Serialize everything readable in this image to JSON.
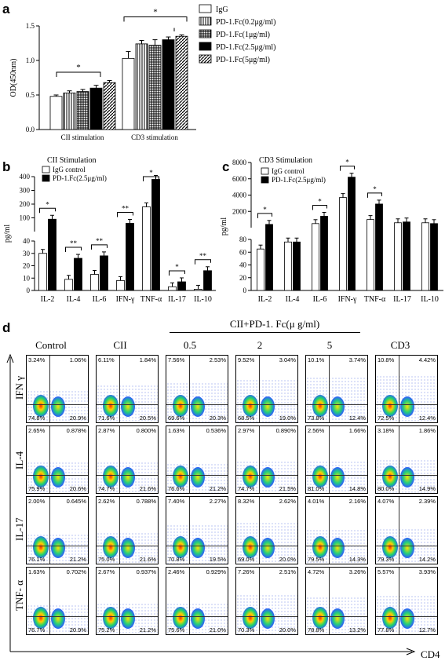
{
  "panels": {
    "a": "a",
    "b": "b",
    "c": "c",
    "d": "d"
  },
  "chart_data": [
    {
      "id": "a",
      "type": "bar",
      "ylabel": "OD(450nm)",
      "ylim": [
        0.0,
        1.5
      ],
      "yticks": [
        "0.0",
        "0.5",
        "1.0",
        "1.5"
      ],
      "categories": [
        "CII stimulation",
        "CD3 stimulation"
      ],
      "series": [
        {
          "name": "IgG",
          "values": [
            0.48,
            1.03
          ],
          "err": [
            0.02,
            0.1
          ],
          "fill": "white"
        },
        {
          "name": "PD-1.Fc(0.2μg/ml)",
          "values": [
            0.53,
            1.24
          ],
          "err": [
            0.03,
            0.05
          ],
          "fill": "vstripe"
        },
        {
          "name": "PD-1.Fc(1μg/ml)",
          "values": [
            0.55,
            1.22
          ],
          "err": [
            0.03,
            0.08
          ],
          "fill": "grid"
        },
        {
          "name": "PD-1.Fc(2.5μg/ml)",
          "values": [
            0.6,
            1.3
          ],
          "err": [
            0.04,
            0.04
          ],
          "fill": "black"
        },
        {
          "name": "PD-1.Fc(5μg/ml)",
          "values": [
            0.68,
            1.35
          ],
          "err": [
            0.03,
            0.02
          ],
          "fill": "diag"
        }
      ],
      "annotations": [
        "*",
        "*"
      ]
    },
    {
      "id": "b",
      "type": "bar",
      "title": "CII Stimulation",
      "ylabel": "pg/ml",
      "yticks_lower": [
        "0",
        "10",
        "20",
        "30",
        "40"
      ],
      "yticks_upper": [
        "100",
        "200",
        "300",
        "400"
      ],
      "categories": [
        "IL-2",
        "IL-4",
        "IL-6",
        "IFN-γ",
        "TNF-α",
        "IL-17",
        "IL-10"
      ],
      "series": [
        {
          "name": "IgG control",
          "values": [
            30,
            9,
            13,
            8,
            180,
            3,
            1
          ],
          "fill": "white"
        },
        {
          "name": "PD-1.Fc(2.5μg/ml)",
          "values": [
            90,
            26,
            28,
            60,
            380,
            7,
            16
          ],
          "fill": "black"
        }
      ],
      "significance": [
        "*",
        "**",
        "**",
        "**",
        "*",
        "*",
        "**"
      ]
    },
    {
      "id": "c",
      "type": "bar",
      "title": "CD3  Stimulation",
      "ylabel": "pg/ml",
      "yticks_lower": [
        "0",
        "20",
        "40",
        "60",
        "80"
      ],
      "yticks_upper": [
        "2000",
        "4000",
        "6000",
        "8000"
      ],
      "categories": [
        "IL-2",
        "IL-4",
        "IL-6",
        "IFN-γ",
        "TNF-α",
        "IL-17",
        "IL-10"
      ],
      "series": [
        {
          "name": "IgG control",
          "values": [
            65,
            76,
            500,
            3700,
            1000,
            600,
            600
          ],
          "fill": "white"
        },
        {
          "name": "PD-1.Fc(2.5μg/ml)",
          "values": [
            400,
            76,
            1400,
            6200,
            2900,
            700,
            500
          ],
          "fill": "black"
        }
      ],
      "significance": [
        "*",
        "",
        "*",
        "*",
        "*",
        "",
        ""
      ]
    }
  ],
  "flow": {
    "group_label": "CII+PD-1. Fc(μ g/ml)",
    "columns": [
      "Control",
      "CII",
      "0.5",
      "2",
      "5",
      "CD3"
    ],
    "rows": [
      "IFN γ",
      "IL-4",
      "IL-17",
      "TNF- α"
    ],
    "x_axis": "CD4",
    "quadrants": [
      [
        [
          "3.24%",
          "1.06%",
          "74.8%",
          "20.9%"
        ],
        [
          "6.11%",
          "1.84%",
          "71.6%",
          "20.5%"
        ],
        [
          "7.56%",
          "2.53%",
          "69.6%",
          "20.3%"
        ],
        [
          "9.52%",
          "3.04%",
          "68.5%",
          "19.0%"
        ],
        [
          "10.1%",
          "3.74%",
          "73.8%",
          "12.4%"
        ],
        [
          "10.8%",
          "4.42%",
          "72.5%",
          "12.4%"
        ]
      ],
      [
        [
          "2.65%",
          "0.878%",
          "75.9%",
          "20.6%"
        ],
        [
          "2.87%",
          "0.800%",
          "74.7%",
          "21.6%"
        ],
        [
          "1.63%",
          "0.536%",
          "76.6%",
          "21.2%"
        ],
        [
          "2.97%",
          "0.890%",
          "74.7%",
          "21.5%"
        ],
        [
          "2.56%",
          "1.66%",
          "81.0%",
          "14.8%"
        ],
        [
          "3.18%",
          "1.86%",
          "80.0%",
          "14.9%"
        ]
      ],
      [
        [
          "2.00%",
          "0.645%",
          "76.1%",
          "21.2%"
        ],
        [
          "2.62%",
          "0.788%",
          "75.0%",
          "21.6%"
        ],
        [
          "7.40%",
          "2.27%",
          "70.8%",
          "19.5%"
        ],
        [
          "8.32%",
          "2.62%",
          "69.0%",
          "20.0%"
        ],
        [
          "4.01%",
          "2.16%",
          "79.5%",
          "14.3%"
        ],
        [
          "4.07%",
          "2.39%",
          "79.3%",
          "14.2%"
        ]
      ],
      [
        [
          "1.63%",
          "0.702%",
          "76.7%",
          "20.9%"
        ],
        [
          "2.67%",
          "0.937%",
          "75.2%",
          "21.2%"
        ],
        [
          "2.46%",
          "0.929%",
          "75.6%",
          "21.0%"
        ],
        [
          "7.26%",
          "2.51%",
          "70.3%",
          "20.0%"
        ],
        [
          "4.72%",
          "3.26%",
          "78.8%",
          "13.2%"
        ],
        [
          "5.57%",
          "3.93%",
          "77.8%",
          "12.7%"
        ]
      ]
    ]
  }
}
